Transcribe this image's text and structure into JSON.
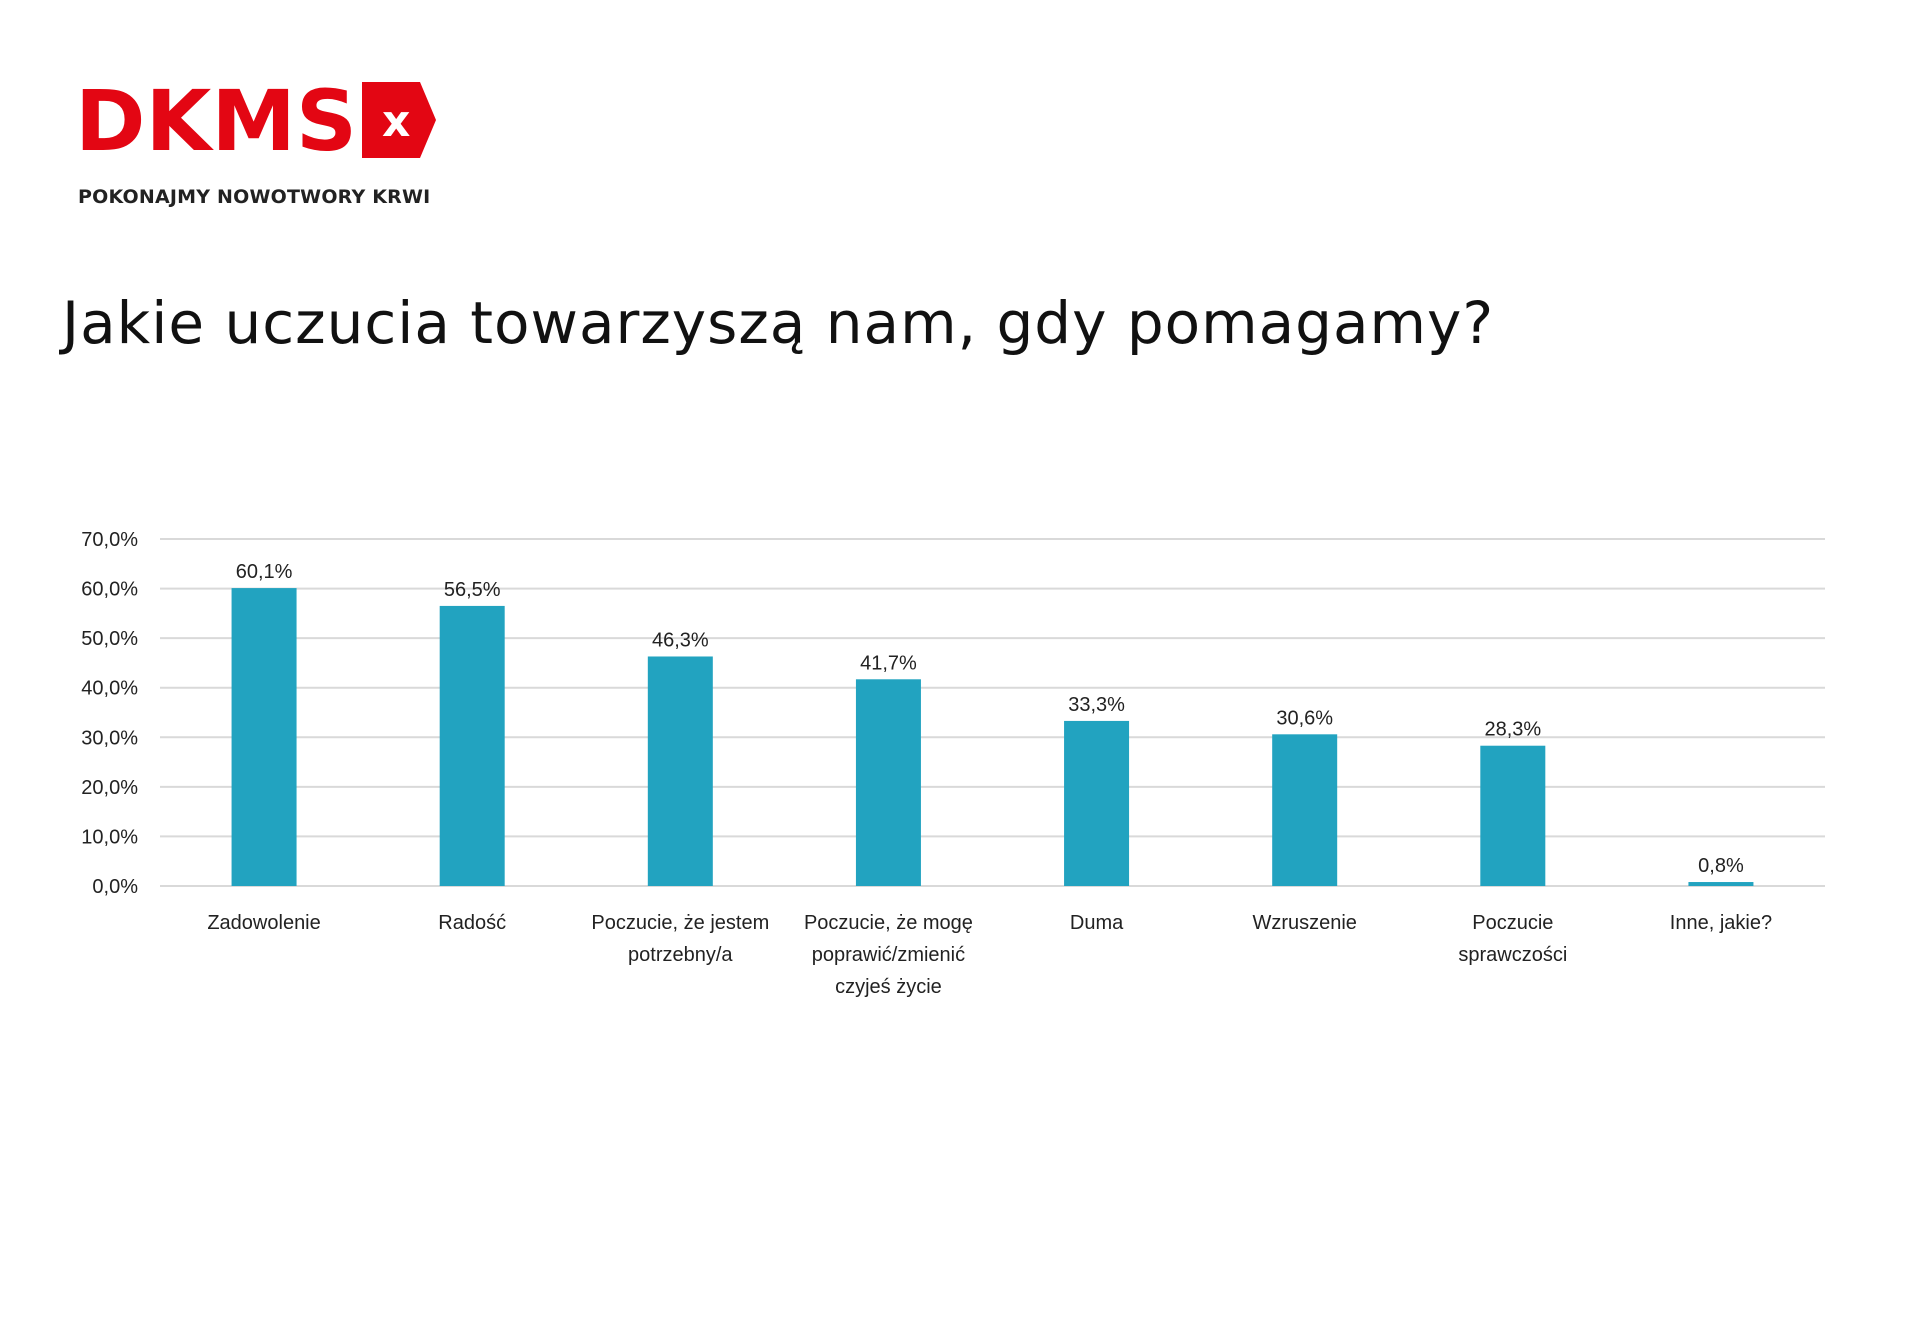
{
  "logo": {
    "text": "DKMS",
    "mark": "x",
    "tagline": "POKONAJMY NOWOTWORY KRWI",
    "brand_color": "#e30613"
  },
  "title": "Jakie uczucia towarzyszą nam, gdy pomagamy?",
  "chart_data": {
    "type": "bar",
    "title": "",
    "xlabel": "",
    "ylabel": "",
    "ylim": [
      0,
      70
    ],
    "yticks": [
      0,
      10,
      20,
      30,
      40,
      50,
      60,
      70
    ],
    "ytick_labels": [
      "0,0%",
      "10,0%",
      "20,0%",
      "30,0%",
      "40,0%",
      "50,0%",
      "60,0%",
      "70,0%"
    ],
    "grid": true,
    "bar_color": "#22a3c0",
    "categories": [
      [
        "Zadowolenie"
      ],
      [
        "Radość"
      ],
      [
        "Poczucie, że jestem",
        "potrzebny/a"
      ],
      [
        "Poczucie, że mogę",
        "poprawić/zmienić",
        "czyjeś życie"
      ],
      [
        "Duma"
      ],
      [
        "Wzruszenie"
      ],
      [
        "Poczucie",
        "sprawczości"
      ],
      [
        "Inne, jakie?"
      ]
    ],
    "values": [
      60.1,
      56.5,
      46.3,
      41.7,
      33.3,
      30.6,
      28.3,
      0.8
    ],
    "data_labels": [
      "60,1%",
      "56,5%",
      "46,3%",
      "41,7%",
      "33,3%",
      "30,6%",
      "28,3%",
      "0,8%"
    ]
  }
}
